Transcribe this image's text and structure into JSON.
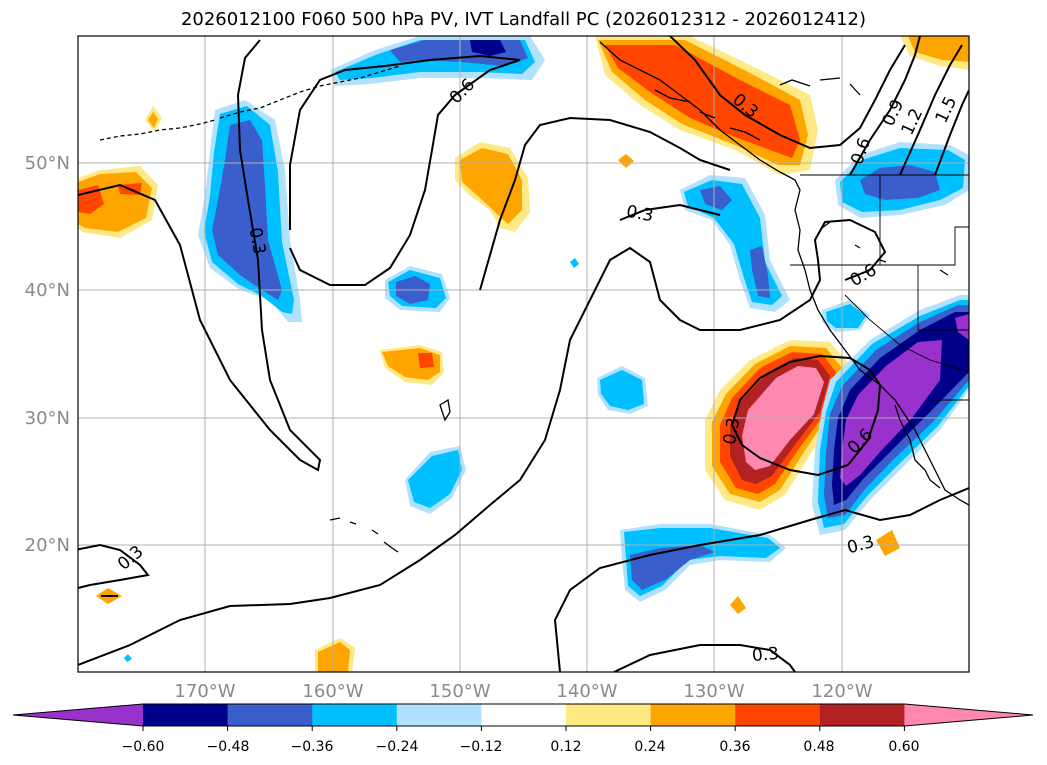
{
  "title": "2026012100 F060 500 hPa PV, IVT Landfall PC (2026012312 - 2026012412)",
  "map": {
    "lon_range": [
      -180,
      -110
    ],
    "lat_range": [
      10,
      60
    ],
    "lat_gridlines": [
      20,
      30,
      40,
      50
    ],
    "lat_labels": [
      "20°N",
      "30°N",
      "40°N",
      "50°N"
    ],
    "lon_gridlines": [
      -170,
      -160,
      -150,
      -140,
      -130,
      -120
    ],
    "lon_labels": [
      "170°W",
      "160°W",
      "150°W",
      "140°W",
      "130°W",
      "120°W"
    ],
    "grid": true
  },
  "contour_labels": [
    "0.6",
    "0.3",
    "0.3",
    "0.6",
    "0.9",
    "1.2",
    "1.5",
    "0.3",
    "0.6",
    "0.3",
    "0.6",
    "0.3",
    "0.3",
    "0.3"
  ],
  "colorbar": {
    "ticks": [
      "−0.60",
      "−0.48",
      "−0.36",
      "−0.24",
      "−0.12",
      "0.12",
      "0.24",
      "0.36",
      "0.48",
      "0.60"
    ],
    "colors": [
      "#9932cc",
      "#00008b",
      "#3a5fcd",
      "#00bfff",
      "#b0e2ff",
      "#ffffff",
      "#ffe985",
      "#ffa500",
      "#ff4500",
      "#b22222",
      "#ff88b0"
    ],
    "extend": "both"
  }
}
